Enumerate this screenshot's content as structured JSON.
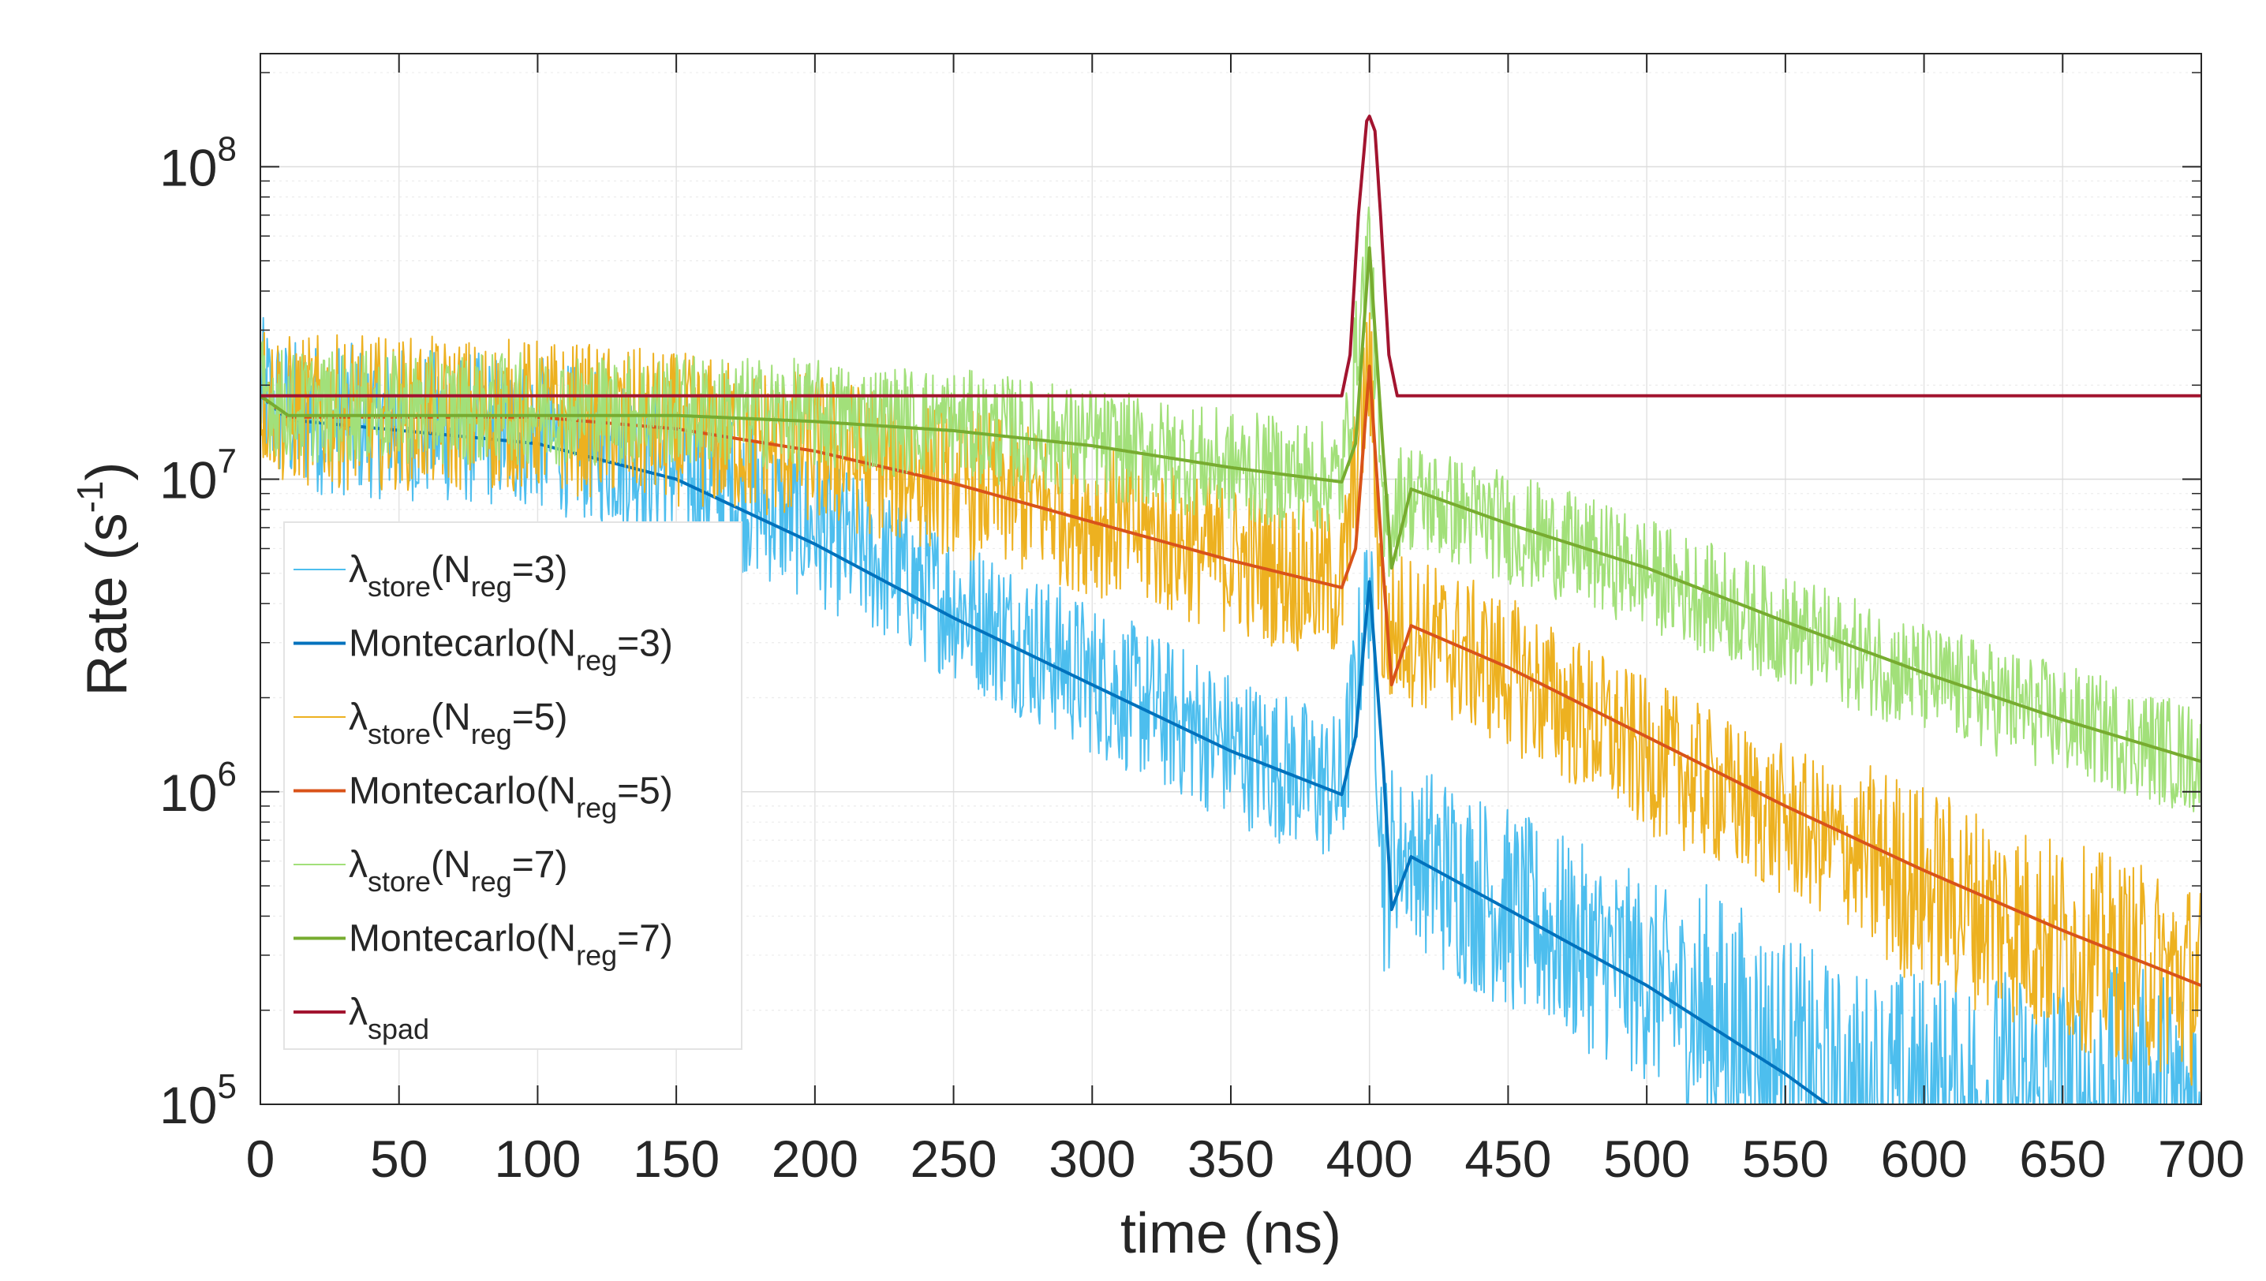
{
  "chart_data": {
    "type": "line",
    "title": "",
    "xlabel": "time (ns)",
    "ylabel_base": "Rate (s",
    "ylabel_sup": "-1",
    "ylabel_end": ")",
    "x_scale": "linear",
    "y_scale": "log",
    "xlim": [
      0,
      700
    ],
    "ylim": [
      100000,
      230000000
    ],
    "xticks": [
      0,
      50,
      100,
      150,
      200,
      250,
      300,
      350,
      400,
      450,
      500,
      550,
      600,
      650,
      700
    ],
    "xtick_labels": [
      "0",
      "50",
      "100",
      "150",
      "200",
      "250",
      "300",
      "350",
      "400",
      "450",
      "500",
      "550",
      "600",
      "650",
      "700"
    ],
    "yticks": [
      {
        "value": 100000,
        "base": "10",
        "exp": "5"
      },
      {
        "value": 1000000,
        "base": "10",
        "exp": "6"
      },
      {
        "value": 10000000,
        "base": "10",
        "exp": "7"
      },
      {
        "value": 100000000,
        "base": "10",
        "exp": "8"
      }
    ],
    "grid": true,
    "legend_position": "left-middle",
    "series": [
      {
        "name": "λstore(Nreg=3)",
        "kind": "noisy",
        "color": "#4dbeee",
        "width": 2,
        "points": [
          [
            0,
            19000000
          ],
          [
            10,
            16000000
          ],
          [
            100,
            14000000
          ],
          [
            150,
            11000000
          ],
          [
            200,
            7000000
          ],
          [
            250,
            4000000
          ],
          [
            300,
            2300000
          ],
          [
            350,
            1400000
          ],
          [
            390,
            1000000
          ],
          [
            400,
            4800000
          ],
          [
            405,
            550000
          ],
          [
            412,
            650000
          ],
          [
            450,
            420000
          ],
          [
            500,
            250000
          ],
          [
            550,
            130000
          ],
          [
            570,
            100000
          ],
          [
            620,
            100000
          ],
          [
            700,
            100000
          ]
        ],
        "spread": 0.55,
        "floor": 200000
      },
      {
        "name": "Montecarlo(Nreg=3)",
        "kind": "smooth",
        "color": "#0072bd",
        "width": 4,
        "points": [
          [
            0,
            18500000
          ],
          [
            10,
            15500000
          ],
          [
            100,
            13000000
          ],
          [
            150,
            10000000
          ],
          [
            200,
            6200000
          ],
          [
            250,
            3600000
          ],
          [
            300,
            2200000
          ],
          [
            350,
            1350000
          ],
          [
            390,
            980000
          ],
          [
            395,
            1500000
          ],
          [
            400,
            4700000
          ],
          [
            405,
            1200000
          ],
          [
            408,
            420000
          ],
          [
            415,
            620000
          ],
          [
            450,
            420000
          ],
          [
            500,
            240000
          ],
          [
            550,
            125000
          ],
          [
            565,
            100000
          ]
        ]
      },
      {
        "name": "λstore(Nreg=5)",
        "kind": "noisy",
        "color": "#edb120",
        "width": 2,
        "points": [
          [
            0,
            19000000
          ],
          [
            10,
            16500000
          ],
          [
            100,
            16000000
          ],
          [
            150,
            14500000
          ],
          [
            200,
            12500000
          ],
          [
            250,
            10000000
          ],
          [
            300,
            7500000
          ],
          [
            350,
            5600000
          ],
          [
            390,
            4500000
          ],
          [
            400,
            24000000
          ],
          [
            405,
            3000000
          ],
          [
            412,
            3400000
          ],
          [
            450,
            2400000
          ],
          [
            500,
            1300000
          ],
          [
            550,
            800000
          ],
          [
            600,
            500000
          ],
          [
            650,
            330000
          ],
          [
            700,
            240000
          ]
        ],
        "spread": 0.55,
        "floor": 200000
      },
      {
        "name": "Montecarlo(Nreg=5)",
        "kind": "smooth",
        "color": "#d95319",
        "width": 4,
        "points": [
          [
            0,
            18500000
          ],
          [
            10,
            15800000
          ],
          [
            100,
            15800000
          ],
          [
            150,
            14500000
          ],
          [
            200,
            12300000
          ],
          [
            250,
            9700000
          ],
          [
            300,
            7300000
          ],
          [
            350,
            5500000
          ],
          [
            390,
            4500000
          ],
          [
            395,
            6000000
          ],
          [
            400,
            23000000
          ],
          [
            405,
            5000000
          ],
          [
            408,
            2200000
          ],
          [
            415,
            3400000
          ],
          [
            450,
            2500000
          ],
          [
            500,
            1500000
          ],
          [
            550,
            900000
          ],
          [
            600,
            560000
          ],
          [
            650,
            360000
          ],
          [
            700,
            240000
          ]
        ]
      },
      {
        "name": "λstore(Nreg=7)",
        "kind": "noisy",
        "color": "#a2e07a",
        "width": 2,
        "points": [
          [
            0,
            19000000
          ],
          [
            10,
            17000000
          ],
          [
            100,
            16800000
          ],
          [
            150,
            16700000
          ],
          [
            200,
            16000000
          ],
          [
            250,
            15000000
          ],
          [
            300,
            13000000
          ],
          [
            350,
            11000000
          ],
          [
            390,
            10000000
          ],
          [
            400,
            60000000
          ],
          [
            405,
            6500000
          ],
          [
            412,
            9000000
          ],
          [
            450,
            7000000
          ],
          [
            500,
            5000000
          ],
          [
            550,
            3300000
          ],
          [
            600,
            2300000
          ],
          [
            650,
            1700000
          ],
          [
            700,
            1250000
          ]
        ],
        "spread": 0.4,
        "floor": 300000
      },
      {
        "name": "Montecarlo(Nreg=7)",
        "kind": "smooth",
        "color": "#77ac30",
        "width": 4,
        "points": [
          [
            0,
            18500000
          ],
          [
            10,
            16000000
          ],
          [
            100,
            16000000
          ],
          [
            150,
            16000000
          ],
          [
            200,
            15300000
          ],
          [
            250,
            14300000
          ],
          [
            300,
            12800000
          ],
          [
            350,
            10900000
          ],
          [
            390,
            9800000
          ],
          [
            395,
            13000000
          ],
          [
            400,
            55000000
          ],
          [
            405,
            12000000
          ],
          [
            408,
            5200000
          ],
          [
            415,
            9300000
          ],
          [
            450,
            7200000
          ],
          [
            500,
            5200000
          ],
          [
            550,
            3500000
          ],
          [
            600,
            2400000
          ],
          [
            650,
            1700000
          ],
          [
            700,
            1250000
          ]
        ]
      },
      {
        "name": "λspad",
        "kind": "smooth",
        "color": "#a2142f",
        "width": 4,
        "points": [
          [
            0,
            18500000
          ],
          [
            385,
            18500000
          ],
          [
            390,
            18500000
          ],
          [
            393,
            25000000
          ],
          [
            396,
            70000000
          ],
          [
            399,
            140000000
          ],
          [
            400,
            145000000
          ],
          [
            402,
            130000000
          ],
          [
            404,
            70000000
          ],
          [
            407,
            25000000
          ],
          [
            410,
            18500000
          ],
          [
            700,
            18500000
          ]
        ]
      }
    ]
  },
  "legend": {
    "entries": [
      {
        "main": "λ",
        "sub1": "store",
        "mid": "(N",
        "sub2": "reg",
        "end": "=3)"
      },
      {
        "main": "Montecarlo(N",
        "sub1": "",
        "mid": "",
        "sub2": "reg",
        "end": "=3)"
      },
      {
        "main": "λ",
        "sub1": "store",
        "mid": "(N",
        "sub2": "reg",
        "end": "=5)"
      },
      {
        "main": "Montecarlo(N",
        "sub1": "",
        "mid": "",
        "sub2": "reg",
        "end": "=5)"
      },
      {
        "main": "λ",
        "sub1": "store",
        "mid": "(N",
        "sub2": "reg",
        "end": "=7)"
      },
      {
        "main": "Montecarlo(N",
        "sub1": "",
        "mid": "",
        "sub2": "reg",
        "end": "=7)"
      },
      {
        "main": "λ",
        "sub1": "spad",
        "mid": "",
        "sub2": "",
        "end": ""
      }
    ]
  }
}
